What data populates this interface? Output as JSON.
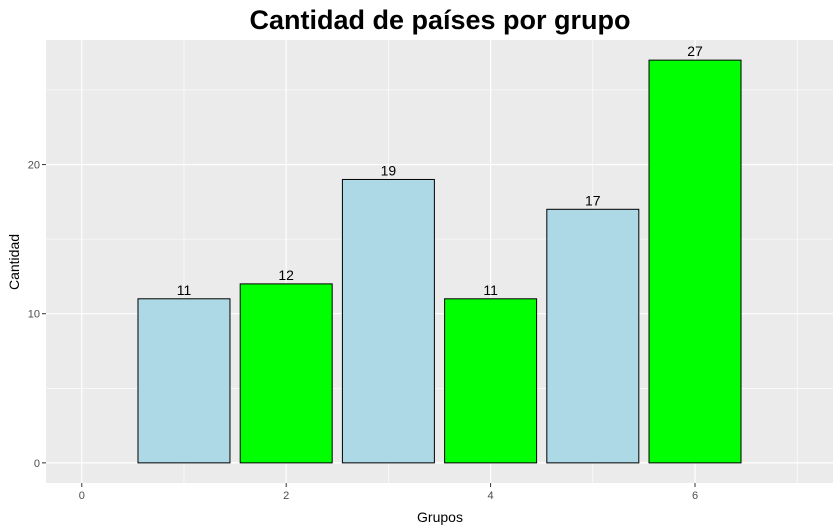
{
  "chart_data": {
    "type": "bar",
    "title": "Cantidad de países por grupo",
    "xlabel": "Grupos",
    "ylabel": "Cantidad",
    "x": [
      1,
      2,
      3,
      4,
      5,
      6
    ],
    "values": [
      11,
      12,
      19,
      11,
      17,
      27
    ],
    "data_labels": [
      "11",
      "12",
      "19",
      "11",
      "17",
      "27"
    ],
    "bar_fills": [
      "#add8e6",
      "#00ff00",
      "#add8e6",
      "#00ff00",
      "#add8e6",
      "#00ff00"
    ],
    "bar_border_color": "#000000",
    "xlim": [
      -0.35,
      7.35
    ],
    "ylim": [
      -1.35,
      28.35
    ],
    "x_ticks": [
      0,
      2,
      4,
      6
    ],
    "x_tick_labels": [
      "0",
      "2",
      "4",
      "6"
    ],
    "y_ticks": [
      0,
      10,
      20
    ],
    "y_tick_labels": [
      "0",
      "10",
      "20"
    ],
    "grid": true,
    "legend": "none",
    "panel_background": "#ebebeb",
    "grid_color": "#ffffff"
  }
}
